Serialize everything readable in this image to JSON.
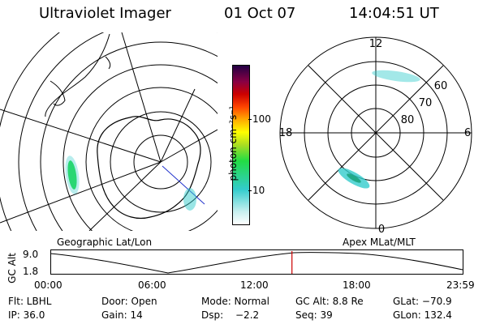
{
  "header": {
    "instrument": "Ultraviolet Imager",
    "date": "01 Oct 07",
    "time": "14:04:51 UT"
  },
  "colorbar": {
    "unit_label": "photon cm⁻²s⁻¹",
    "ticks": [
      "100",
      "10"
    ]
  },
  "geo_map": {
    "caption": "Geographic Lat/Lon"
  },
  "polar_plot": {
    "caption": "Apex MLat/MLT",
    "mlt_labels": {
      "top": "12",
      "left": "18",
      "right": "6",
      "bottom": "0"
    },
    "lat_labels": [
      "60",
      "70",
      "80"
    ]
  },
  "altitude_chart": {
    "ylabel": "GC Alt",
    "yticks": [
      "9.0",
      "1.8"
    ],
    "xticks": [
      "00:00",
      "06:00",
      "12:00",
      "18:00",
      "23:59"
    ],
    "current_time_fraction": 0.586
  },
  "info_panel": {
    "filter": "Flt: LBHL",
    "door": "Door: Open",
    "mode": "Mode: Normal",
    "gc_alt": "GC Alt: 8.8 Re",
    "glat": "GLat: −70.9",
    "ip": "IP: 36.0",
    "gain": "Gain: 14",
    "dsp_label": "Dsp:",
    "dsp_value": "−2.2",
    "seq": "Seq: 39",
    "glon": "GLon: 132.4"
  },
  "colors": {
    "aurora_green": "#22dd44",
    "aurora_cyan": "#33cccc",
    "marker_red": "#cc0000"
  }
}
